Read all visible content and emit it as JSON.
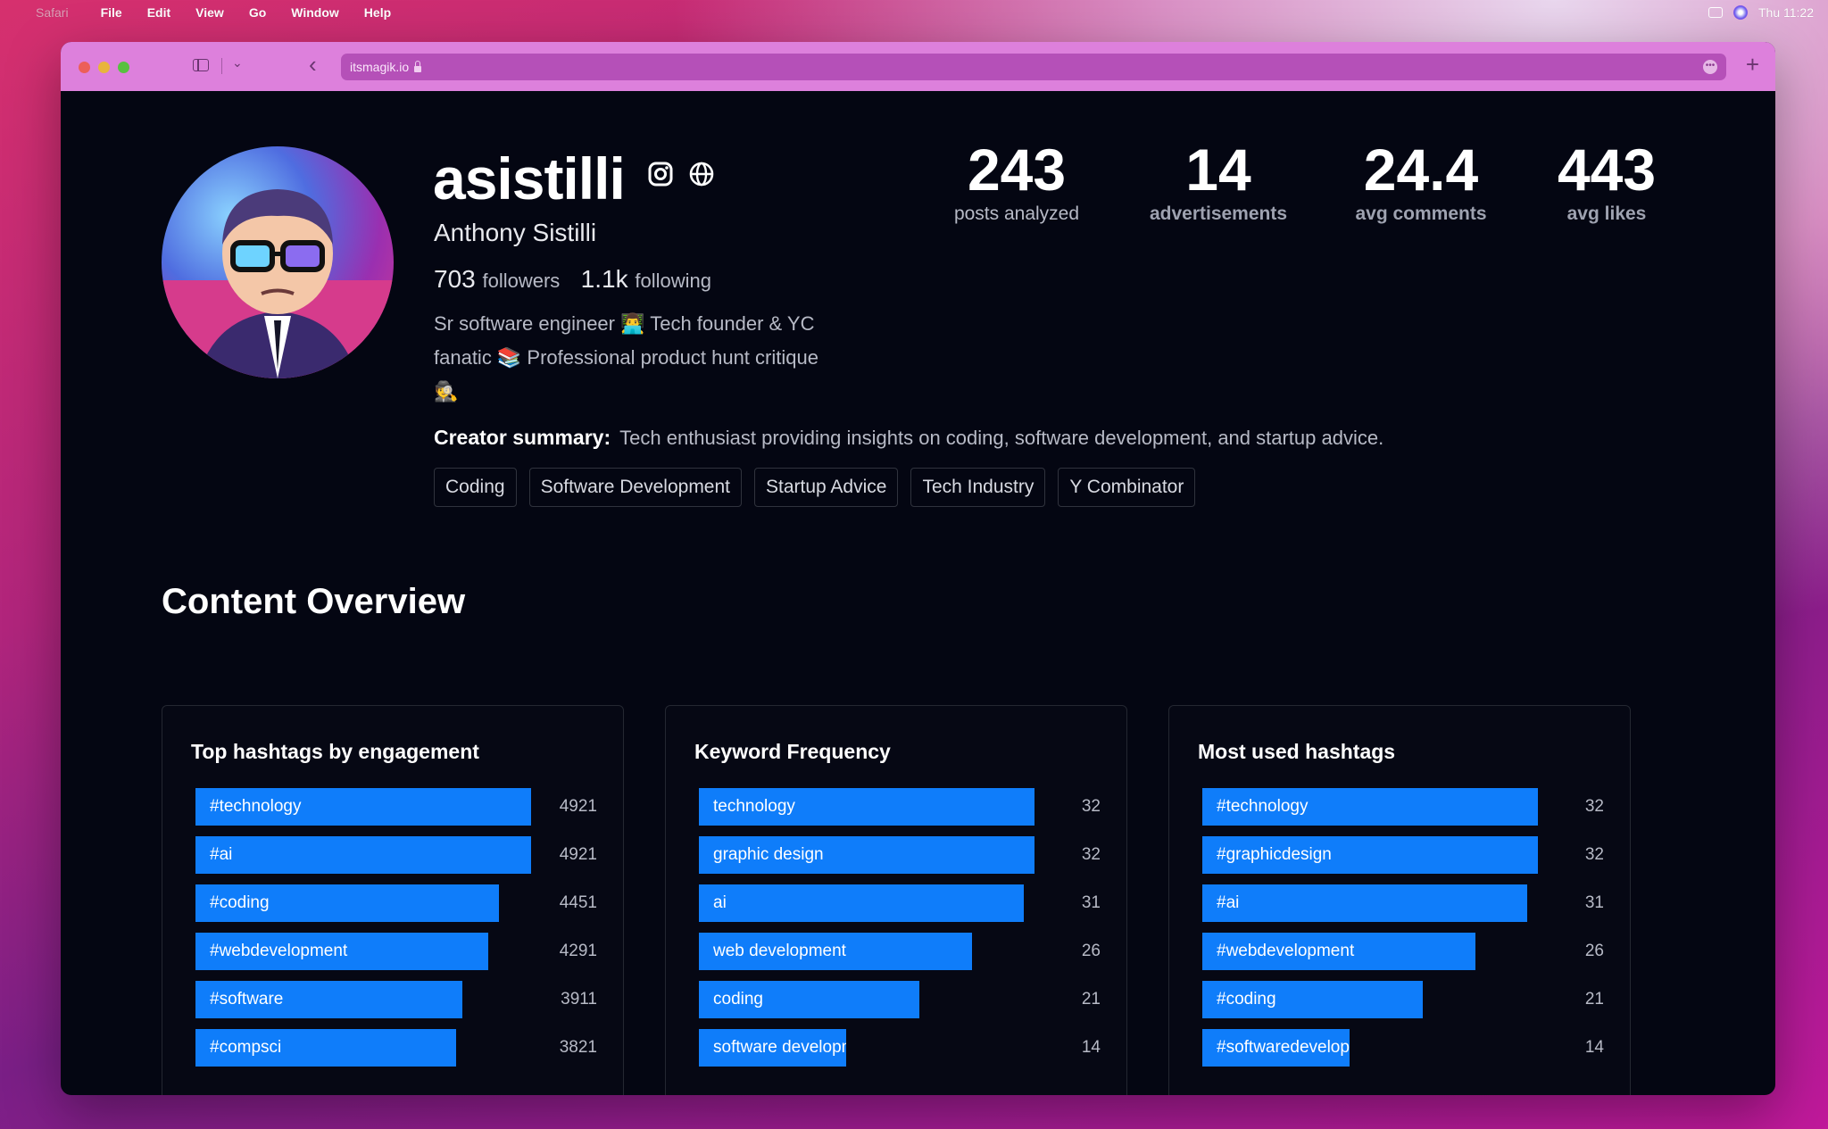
{
  "menubar": {
    "app": "Safari",
    "items": [
      "File",
      "Edit",
      "View",
      "Go",
      "Window",
      "Help"
    ],
    "clock": "Thu 11:22"
  },
  "browser": {
    "url": "itsmagik.io"
  },
  "profile": {
    "username": "asistilli",
    "full_name": "Anthony Sistilli",
    "followers_count": "703",
    "followers_label": "followers",
    "following_count": "1.1k",
    "following_label": "following",
    "bio": "Sr software engineer 👨‍💻 Tech founder & YC fanatic 📚 Professional product hunt critique 🕵️",
    "summary_label": "Creator summary:",
    "summary": "Tech enthusiast providing insights on coding, software development, and startup advice.",
    "tags": [
      "Coding",
      "Software Development",
      "Startup Advice",
      "Tech Industry",
      "Y Combinator"
    ]
  },
  "stats": [
    {
      "value": "243",
      "label": "posts analyzed"
    },
    {
      "value": "14",
      "label": "advertisements"
    },
    {
      "value": "24.4",
      "label": "avg comments"
    },
    {
      "value": "443",
      "label": "avg likes"
    }
  ],
  "colors": {
    "bar": "#0f7dfa",
    "background": "#040612",
    "toolbar": "#dd80dc"
  },
  "section_title": "Content Overview",
  "chart_data": [
    {
      "type": "bar",
      "title": "Top hashtags by engagement",
      "categories": [
        "#technology",
        "#ai",
        "#coding",
        "#webdevelopment",
        "#software",
        "#compsci"
      ],
      "values": [
        4921,
        4921,
        4451,
        4291,
        3911,
        3821
      ]
    },
    {
      "type": "bar",
      "title": "Keyword Frequency",
      "categories": [
        "technology",
        "graphic design",
        "ai",
        "web development",
        "coding",
        "software development"
      ],
      "values": [
        32,
        32,
        31,
        26,
        21,
        14
      ]
    },
    {
      "type": "bar",
      "title": "Most used hashtags",
      "categories": [
        "#technology",
        "#graphicdesign",
        "#ai",
        "#webdevelopment",
        "#coding",
        "#softwaredevelopment"
      ],
      "values": [
        32,
        32,
        31,
        26,
        21,
        14
      ]
    }
  ]
}
